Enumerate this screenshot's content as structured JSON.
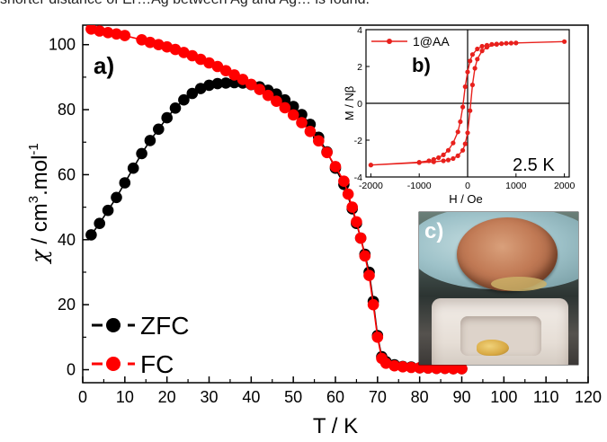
{
  "header_fragment": "shorter distance of Er…Ag between Ag and Ag… is found.",
  "main_plot": {
    "panel_label": "a)",
    "xlabel": "T / K",
    "ylabel_text": "χ / cm³.mol⁻¹",
    "ylabel_chi": "χ",
    "ylabel_unit": " / cm",
    "ylabel_sup1": "3",
    "ylabel_mid": ".mol",
    "ylabel_sup2": "-1",
    "x_ticks": [
      "0",
      "10",
      "20",
      "30",
      "40",
      "50",
      "60",
      "70",
      "80",
      "90",
      "100",
      "110",
      "120"
    ],
    "y_ticks": [
      "0",
      "20",
      "40",
      "60",
      "80",
      "100"
    ],
    "legend": [
      {
        "label": "ZFC",
        "color": "#000000"
      },
      {
        "label": "FC",
        "color": "#ff0000"
      }
    ]
  },
  "inset_b": {
    "panel_label": "b)",
    "legend_label": "1@AA",
    "annotation": "2.5 K",
    "xlabel": "H / Oe",
    "ylabel": "M / Nβ",
    "x_ticks": [
      "-2000",
      "-1000",
      "0",
      "1000",
      "2000"
    ],
    "y_ticks": [
      "-4",
      "-2",
      "0",
      "2",
      "4"
    ]
  },
  "inset_c": {
    "panel_label": "c)"
  },
  "colors": {
    "zfc": "#000000",
    "fc": "#ff0000",
    "inset_line": "#e8201c"
  },
  "chart_data": [
    {
      "type": "scatter",
      "title": "",
      "xlabel": "T / K",
      "ylabel": "χ / cm³.mol⁻¹",
      "xlim": [
        0,
        120
      ],
      "ylim": [
        -4,
        106
      ],
      "x_ticks": [
        0,
        10,
        20,
        30,
        40,
        50,
        60,
        70,
        80,
        90,
        100,
        110,
        120
      ],
      "y_ticks": [
        0,
        20,
        40,
        60,
        80,
        100
      ],
      "legend_position": "bottom-left",
      "series": [
        {
          "name": "ZFC",
          "color": "#000000",
          "points": [
            [
              2,
              41.5
            ],
            [
              4,
              45
            ],
            [
              6,
              49
            ],
            [
              8,
              53
            ],
            [
              10,
              57.5
            ],
            [
              12,
              62
            ],
            [
              14,
              66.5
            ],
            [
              16,
              70.5
            ],
            [
              18,
              74
            ],
            [
              20,
              77.5
            ],
            [
              22,
              80.5
            ],
            [
              24,
              83
            ],
            [
              26,
              85
            ],
            [
              28,
              86.5
            ],
            [
              30,
              87.5
            ],
            [
              32,
              88
            ],
            [
              34,
              88.2
            ],
            [
              36,
              88.3
            ],
            [
              38,
              88.2
            ],
            [
              40,
              87.7
            ],
            [
              42,
              87
            ],
            [
              44,
              86
            ],
            [
              46,
              84.8
            ],
            [
              48,
              83
            ],
            [
              50,
              81
            ],
            [
              52,
              78.5
            ],
            [
              54,
              75.5
            ],
            [
              56,
              71.5
            ],
            [
              58,
              67
            ],
            [
              60,
              62
            ],
            [
              62,
              57
            ],
            [
              64,
              49.5
            ],
            [
              65,
              45
            ],
            [
              66,
              40.5
            ],
            [
              67,
              35.5
            ],
            [
              68,
              30
            ],
            [
              69,
              21
            ],
            [
              70,
              10.5
            ],
            [
              71,
              4
            ],
            [
              72,
              2.5
            ],
            [
              74,
              1.5
            ],
            [
              76,
              1
            ],
            [
              78,
              0.8
            ],
            [
              80,
              0.6
            ],
            [
              82,
              0.5
            ],
            [
              84,
              0.4
            ],
            [
              86,
              0.4
            ],
            [
              88,
              0.3
            ],
            [
              90,
              0.3
            ]
          ]
        },
        {
          "name": "FC",
          "color": "#ff0000",
          "points": [
            [
              2,
              104.8
            ],
            [
              4,
              104.2
            ],
            [
              6,
              103.7
            ],
            [
              8,
              103.3
            ],
            [
              10,
              102.8
            ],
            [
              14,
              101.5
            ],
            [
              16,
              100.7
            ],
            [
              18,
              100
            ],
            [
              20,
              99.3
            ],
            [
              22,
              98.5
            ],
            [
              24,
              97.6
            ],
            [
              26,
              96.6
            ],
            [
              28,
              95.5
            ],
            [
              30,
              94.4
            ],
            [
              32,
              93.3
            ],
            [
              34,
              92
            ],
            [
              36,
              90.7
            ],
            [
              38,
              89.3
            ],
            [
              40,
              87.8
            ],
            [
              42,
              86.2
            ],
            [
              44,
              84.4
            ],
            [
              46,
              82.6
            ],
            [
              48,
              80.6
            ],
            [
              50,
              78.4
            ],
            [
              52,
              76
            ],
            [
              54,
              73.3
            ],
            [
              56,
              70.4
            ],
            [
              58,
              66.8
            ],
            [
              60,
              62.5
            ],
            [
              62,
              58
            ],
            [
              63,
              54
            ],
            [
              64,
              50
            ],
            [
              65,
              45.5
            ],
            [
              66,
              40.5
            ],
            [
              67,
              35
            ],
            [
              68,
              29
            ],
            [
              69,
              20
            ],
            [
              70,
              10
            ],
            [
              71,
              3.5
            ],
            [
              72,
              2
            ],
            [
              74,
              1.2
            ],
            [
              76,
              0.9
            ],
            [
              78,
              0.7
            ],
            [
              80,
              0.6
            ],
            [
              82,
              0.5
            ],
            [
              84,
              0.4
            ],
            [
              86,
              0.4
            ],
            [
              88,
              0.3
            ],
            [
              90,
              0.3
            ]
          ]
        }
      ]
    },
    {
      "type": "line",
      "title": "",
      "xlabel": "H / Oe",
      "ylabel": "M / Nβ",
      "xlim": [
        -2100,
        2100
      ],
      "ylim": [
        -4,
        4
      ],
      "x_ticks": [
        -2000,
        -1000,
        0,
        1000,
        2000
      ],
      "y_ticks": [
        -4,
        -2,
        0,
        2,
        4
      ],
      "legend_position": "top-left",
      "series": [
        {
          "name": "1@AA",
          "color": "#e8201c",
          "points": [
            [
              -2000,
              -3.35
            ],
            [
              -1000,
              -3.2
            ],
            [
              -800,
              -3.12
            ],
            [
              -700,
              -3.05
            ],
            [
              -600,
              -2.95
            ],
            [
              -500,
              -2.8
            ],
            [
              -400,
              -2.55
            ],
            [
              -300,
              -2.15
            ],
            [
              -200,
              -1.55
            ],
            [
              -150,
              -1.0
            ],
            [
              -100,
              -0.2
            ],
            [
              -50,
              0.9
            ],
            [
              0,
              1.7
            ],
            [
              50,
              2.3
            ],
            [
              100,
              2.65
            ],
            [
              200,
              2.95
            ],
            [
              300,
              3.1
            ],
            [
              400,
              3.15
            ],
            [
              500,
              3.2
            ],
            [
              600,
              3.22
            ],
            [
              700,
              3.24
            ],
            [
              800,
              3.26
            ],
            [
              900,
              3.27
            ],
            [
              1000,
              3.28
            ],
            [
              2000,
              3.35
            ],
            [
              1000,
              3.28
            ],
            [
              600,
              3.2
            ],
            [
              400,
              3.05
            ],
            [
              300,
              2.85
            ],
            [
              200,
              2.4
            ],
            [
              150,
              1.9
            ],
            [
              100,
              1.0
            ],
            [
              50,
              -0.4
            ],
            [
              0,
              -1.6
            ],
            [
              -50,
              -2.2
            ],
            [
              -100,
              -2.55
            ],
            [
              -200,
              -2.85
            ],
            [
              -300,
              -3.0
            ],
            [
              -400,
              -3.08
            ],
            [
              -500,
              -3.12
            ],
            [
              -700,
              -3.18
            ],
            [
              -1000,
              -3.22
            ],
            [
              -2000,
              -3.35
            ]
          ]
        }
      ]
    }
  ]
}
